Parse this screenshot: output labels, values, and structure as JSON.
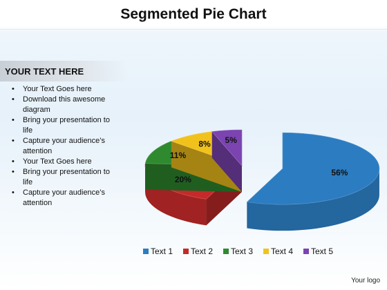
{
  "title": "Segmented Pie Chart",
  "sidebar": {
    "header": "YOUR TEXT HERE",
    "bullets": [
      "Your Text Goes here",
      "Download this awesome diagram",
      "Bring your presentation to life",
      "Capture your audience’s attention",
      "Your Text Goes here",
      "Bring your presentation to life",
      "Capture your audience’s attention"
    ]
  },
  "logo": "Your logo",
  "chart_data": {
    "type": "pie",
    "categories": [
      "Text 1",
      "Text 2",
      "Text 3",
      "Text 4",
      "Text 5"
    ],
    "values": [
      56,
      20,
      11,
      8,
      5
    ],
    "labels": [
      "56%",
      "20%",
      "11%",
      "8%",
      "5%"
    ],
    "colors": [
      "#2c7cc1",
      "#c42a2a",
      "#2f8a2f",
      "#f2c21c",
      "#7b44b0"
    ],
    "exploded": [
      "Text 1"
    ],
    "legend_position": "bottom"
  }
}
